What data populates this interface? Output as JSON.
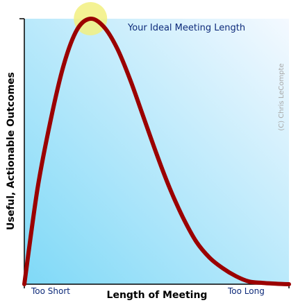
{
  "chart_data": {
    "type": "line",
    "title": "",
    "xlabel": "Length of Meeting",
    "ylabel": "Useful, Actionable Outcomes",
    "x_tick_labels": [
      "Too Short",
      "Too Long"
    ],
    "annotation": "Your Ideal Meeting Length",
    "watermark": "(C) Chris LeCompte",
    "xlim": [
      0,
      1
    ],
    "ylim": [
      0,
      1
    ],
    "grid": false,
    "legend": "none",
    "series": [
      {
        "x": [
          0.0,
          0.05,
          0.1,
          0.15,
          0.2,
          0.25,
          0.3,
          0.35,
          0.4,
          0.45,
          0.5,
          0.55,
          0.6,
          0.65,
          0.7,
          0.75,
          0.8,
          0.85,
          0.9,
          0.95,
          1.0
        ],
        "values": [
          0.0,
          0.36,
          0.62,
          0.83,
          0.96,
          1.0,
          0.97,
          0.89,
          0.77,
          0.63,
          0.49,
          0.36,
          0.25,
          0.16,
          0.1,
          0.06,
          0.03,
          0.01,
          0.005,
          0.002,
          0.0
        ]
      }
    ],
    "highlight_point": {
      "x": 0.25,
      "y": 1.0
    },
    "colors": {
      "line": "#9b0000",
      "bg_start": "#7fd9f7",
      "bg_end": "#f4f9ff",
      "highlight": "#f2f080",
      "border": "#7ddcf5",
      "text_blue": "#0d2a7a",
      "watermark": "#a7a7a7"
    }
  }
}
